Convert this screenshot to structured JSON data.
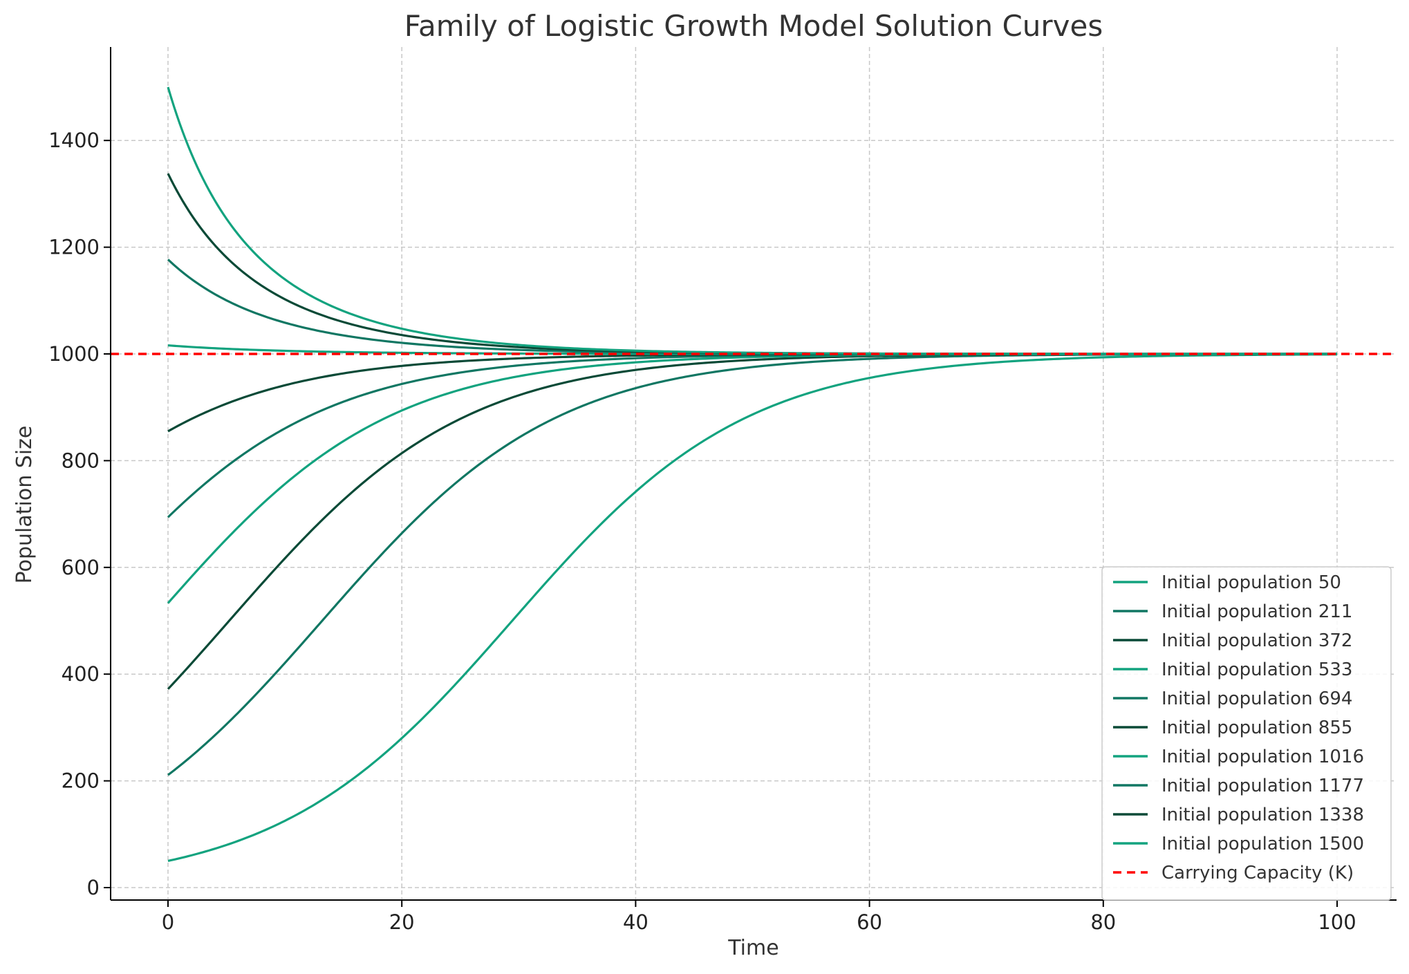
{
  "chart_data": {
    "type": "line",
    "title": "Family of Logistic Growth Model Solution Curves",
    "xlabel": "Time",
    "ylabel": "Population Size",
    "xlim": [
      -5,
      105
    ],
    "ylim": [
      -20,
      1575
    ],
    "xticks": [
      0,
      20,
      40,
      60,
      80,
      100
    ],
    "yticks": [
      0,
      200,
      400,
      600,
      800,
      1000,
      1200,
      1400
    ],
    "grid": true,
    "legend_position": "lower-right",
    "growth_rate": 0.1,
    "carrying_capacity": 1000,
    "colors": [
      "#13a37f",
      "#117763",
      "#0a4a37"
    ],
    "series": [
      {
        "name": "Initial population 50",
        "initial": 50,
        "t_start": 0,
        "t_end": 100,
        "color": "#13a37f"
      },
      {
        "name": "Initial population 211",
        "initial": 211,
        "t_start": 0,
        "t_end": 100,
        "color": "#117763"
      },
      {
        "name": "Initial population 372",
        "initial": 372,
        "t_start": 0,
        "t_end": 100,
        "color": "#0a4a37"
      },
      {
        "name": "Initial population 533",
        "initial": 533,
        "t_start": 0,
        "t_end": 100,
        "color": "#13a37f"
      },
      {
        "name": "Initial population 694",
        "initial": 694,
        "t_start": 0,
        "t_end": 100,
        "color": "#117763"
      },
      {
        "name": "Initial population 855",
        "initial": 855,
        "t_start": 0,
        "t_end": 100,
        "color": "#0a4a37"
      },
      {
        "name": "Initial population 1016",
        "initial": 1016,
        "t_start": 0,
        "t_end": 100,
        "color": "#13a37f"
      },
      {
        "name": "Initial population 1177",
        "initial": 1177,
        "t_start": 0,
        "t_end": 100,
        "color": "#117763"
      },
      {
        "name": "Initial population 1338",
        "initial": 1338,
        "t_start": 0,
        "t_end": 100,
        "color": "#0a4a37"
      },
      {
        "name": "Initial population 1500",
        "initial": 1500,
        "t_start": 0,
        "t_end": 100,
        "color": "#13a37f"
      }
    ],
    "reference_line": {
      "name": "Carrying Capacity (K)",
      "y": 1000,
      "style": "dashed",
      "color": "#ff0000"
    }
  }
}
